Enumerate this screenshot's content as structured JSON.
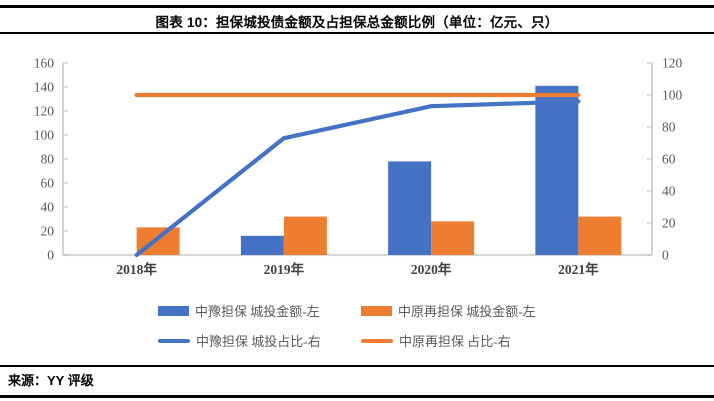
{
  "header": {
    "title": "图表 10：担保城投债金额及占担保总金额比例（单位：亿元、只）"
  },
  "footer": {
    "source": "来源：YY 评级"
  },
  "colors": {
    "blue": "#4472C4",
    "orange": "#ED7D31",
    "axis_line": "#BFBFBF",
    "baseline": "#D6D6D6",
    "tick_label": "#595959",
    "category_label": "#3F3F3F"
  },
  "chart_data": {
    "type": "bar",
    "subtype": "combo-bar-line-dual-axis",
    "categories": [
      "2018年",
      "2019年",
      "2020年",
      "2021年"
    ],
    "series": [
      {
        "name": "中豫担保 城投金额-左",
        "kind": "bar",
        "axis": "left",
        "color": "#4472C4",
        "values": [
          0,
          16,
          78,
          141
        ]
      },
      {
        "name": "中原再担保 城投金额-左",
        "kind": "bar",
        "axis": "left",
        "color": "#ED7D31",
        "values": [
          23,
          32,
          28,
          32
        ]
      },
      {
        "name": "中豫担保 城投占比-右",
        "kind": "line",
        "axis": "right",
        "color": "#4472C4",
        "values": [
          0,
          73,
          93,
          96
        ]
      },
      {
        "name": "中原再担保 占比-右",
        "kind": "line",
        "axis": "right",
        "color": "#ED7D31",
        "values": [
          100,
          100,
          100,
          100
        ]
      }
    ],
    "left_axis": {
      "min": 0,
      "max": 160,
      "step": 20
    },
    "right_axis": {
      "min": 0,
      "max": 120,
      "step": 20
    },
    "grid": false,
    "legend_position": "bottom"
  }
}
